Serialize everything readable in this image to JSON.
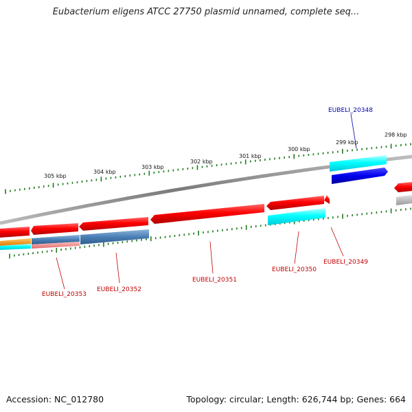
{
  "title": "Eubacterium eligens ATCC 27750 plasmid unnamed, complete seq...",
  "accession": "Accession: NC_012780",
  "summary": "Topology: circular; Length: 626,744 bp; Genes: 664",
  "colors": {
    "backbone": "#8a8a8a",
    "tick": "#1f7a1f",
    "gene_forward": "#ff0000",
    "gene_red_dark": "#c40000",
    "cds_cyan": "#00ffff",
    "cds_blue": "#0000ee",
    "cds_steel": "#4a7fb5",
    "cds_pink": "#f08080",
    "cds_orange": "#ff9900",
    "cds_grey": "#b0b0b0",
    "label_red": "#c00000",
    "label_blue": "#0000aa"
  },
  "scale_labels": [
    "305 kbp",
    "304 kbp",
    "303 kbp",
    "302 kbp",
    "301 kbp",
    "300 kbp",
    "299 kbp",
    "298 kbp"
  ],
  "gene_labels": [
    {
      "text": "EUBELI_20348",
      "color": "blue"
    },
    {
      "text": "EUBELI_20349",
      "color": "red"
    },
    {
      "text": "EUBELI_20350",
      "color": "red"
    },
    {
      "text": "EUBELI_20351",
      "color": "red"
    },
    {
      "text": "EUBELI_20352",
      "color": "red"
    },
    {
      "text": "EUBELI_20353",
      "color": "red"
    }
  ]
}
